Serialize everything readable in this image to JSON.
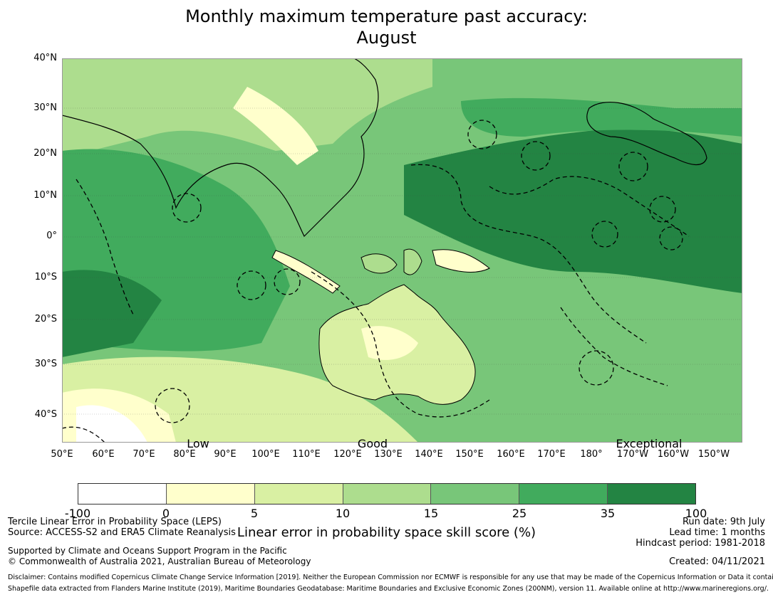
{
  "title": {
    "line1": "Monthly maximum temperature past accuracy:",
    "line2": "August"
  },
  "map": {
    "lat_labels": [
      "40°N",
      "30°N",
      "20°N",
      "10°N",
      "0°",
      "10°S",
      "20°S",
      "30°S",
      "40°S"
    ],
    "lon_labels": [
      "50°E",
      "60°E",
      "70°E",
      "80°E",
      "90°E",
      "100°E",
      "110°E",
      "120°E",
      "130°E",
      "140°E",
      "150°E",
      "160°E",
      "170°E",
      "180°",
      "170°W",
      "160°W",
      "150°W"
    ],
    "categories": [
      "Low",
      "Good",
      "Exceptional"
    ],
    "colors": {
      "c1": "#ffffff",
      "c2": "#ffffcc",
      "c3": "#d9f0a3",
      "c4": "#addd8e",
      "c5": "#78c679",
      "c6": "#41ab5d",
      "c7": "#238443"
    }
  },
  "colorbar": {
    "ticks": [
      "-100",
      "0",
      "5",
      "10",
      "15",
      "25",
      "35",
      "100"
    ],
    "colors": [
      "#ffffff",
      "#ffffcc",
      "#d9f0a3",
      "#addd8e",
      "#78c679",
      "#41ab5d",
      "#238443"
    ],
    "label": "Linear error in probability space skill score (%)"
  },
  "info": {
    "left1": "Tercile Linear Error in Probability Space (LEPS)",
    "left2": "Source: ACCESS-S2 and ERA5 Climate Reanalysis",
    "left3": "Supported by Climate and Oceans Support Program in the Pacific",
    "left4": "© Commonwealth of Australia 2021, Australian Bureau of Meteorology",
    "right1": "Run date: 9th July",
    "right2": "Lead time: 1 months",
    "right3": "Hindcast period: 1981-2018",
    "right4": "Created: 04/11/2021"
  },
  "disclaimer": {
    "line1": "Disclaimer: Contains modified Copernicus Climate Change Service Information [2019]. Neither the European Commission nor ECMWF is responsible for any use that may be made of the Copernicus Information or Data it contains.",
    "line2": "Shapefile data extracted from Flanders Marine Institute (2019), Maritime Boundaries Geodatabase: Maritime Boundaries and Exclusive Economic Zones (200NM), version 11. Available online at http://www.marineregions.org/."
  }
}
